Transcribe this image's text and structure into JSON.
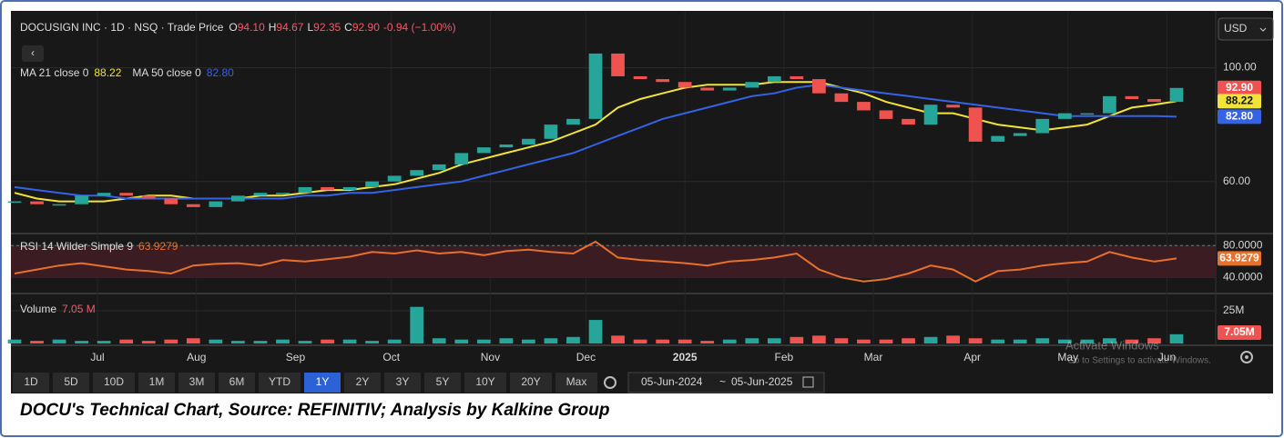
{
  "chart_data": [
    {
      "type": "candlestick",
      "title": "DOCUSIGN INC · 1D · NSQ · Trade Price",
      "ohlc": [
        {
          "key": "O",
          "value": "94.10"
        },
        {
          "key": "H",
          "value": "94.67"
        },
        {
          "key": "L",
          "value": "92.35"
        },
        {
          "key": "C",
          "value": "92.90"
        }
      ],
      "change": "-0.94 (−1.00%)",
      "xlim": [
        0,
        52
      ],
      "ylim": [
        42,
        120
      ],
      "yticks": [
        {
          "value": 60,
          "label": "60.00"
        },
        {
          "value": 100,
          "label": "100.00"
        }
      ],
      "color_up": "#26a69a",
      "color_down": "#ef5350",
      "close": [
        53,
        52,
        52,
        55,
        56,
        55,
        54,
        52,
        51,
        53,
        55,
        56,
        56,
        58,
        57,
        58,
        60,
        62,
        64,
        66,
        70,
        72,
        73,
        75,
        80,
        82,
        105,
        97,
        96,
        95,
        93,
        92,
        93,
        95,
        97,
        96,
        91,
        88,
        85,
        82,
        80,
        87,
        86,
        74,
        76,
        77,
        82,
        84,
        84,
        90,
        89,
        88,
        92.9
      ],
      "series": [
        {
          "name": "MA 21 close 0",
          "color": "#f2e33a",
          "value_label": "88.22",
          "values": [
            56,
            54,
            53,
            53,
            53,
            54,
            55,
            55,
            54,
            54,
            54,
            55,
            55,
            56,
            57,
            57,
            58,
            59,
            61,
            63,
            66,
            68,
            70,
            72,
            74,
            77,
            80,
            86,
            89,
            91,
            93,
            94,
            94,
            94,
            95,
            95,
            95,
            93,
            91,
            88,
            86,
            84,
            84,
            82,
            80,
            79,
            78,
            79,
            80,
            83,
            86,
            87,
            88.22
          ]
        },
        {
          "name": "MA 50 close 0",
          "color": "#3563e6",
          "value_label": "82.80",
          "values": [
            58,
            57,
            56,
            55,
            55,
            54,
            54,
            54,
            54,
            54,
            54,
            54,
            54,
            55,
            55,
            56,
            56,
            57,
            58,
            59,
            60,
            62,
            64,
            66,
            68,
            70,
            73,
            76,
            79,
            82,
            84,
            86,
            88,
            90,
            91,
            93,
            94,
            93,
            92,
            91,
            90,
            89,
            88,
            87,
            86,
            85,
            84,
            83,
            83,
            83,
            83,
            83,
            82.8
          ]
        }
      ]
    },
    {
      "type": "line",
      "xlim": [
        0,
        52
      ],
      "ylim": [
        21,
        94
      ],
      "yticks": [
        {
          "value": 40,
          "label": "40.0000"
        },
        {
          "value": 80,
          "label": "80.0000"
        }
      ],
      "series": [
        {
          "name": "RSI 14 Wilder Simple 9",
          "color": "#e8702a",
          "value_label": "63.9279",
          "values": [
            45,
            50,
            55,
            58,
            54,
            50,
            48,
            45,
            55,
            57,
            58,
            55,
            62,
            60,
            63,
            66,
            72,
            70,
            74,
            70,
            72,
            68,
            73,
            75,
            72,
            70,
            85,
            65,
            62,
            60,
            58,
            55,
            60,
            62,
            65,
            70,
            50,
            40,
            35,
            38,
            45,
            55,
            50,
            35,
            48,
            50,
            55,
            58,
            60,
            72,
            65,
            60,
            63.9279
          ]
        }
      ]
    },
    {
      "type": "bar",
      "xlim": [
        0,
        52
      ],
      "ylim": [
        0,
        37.5
      ],
      "yticks": [
        {
          "value": 25,
          "label": "25M"
        }
      ],
      "xticks": [
        {
          "value": 3.71,
          "label": "Jul"
        },
        {
          "value": 8.14,
          "label": "Aug"
        },
        {
          "value": 12.57,
          "label": "Sep"
        },
        {
          "value": 16.86,
          "label": "Oct"
        },
        {
          "value": 21.29,
          "label": "Nov"
        },
        {
          "value": 25.57,
          "label": "Dec"
        },
        {
          "value": 30,
          "label": "2025"
        },
        {
          "value": 34.43,
          "label": "Feb"
        },
        {
          "value": 38.43,
          "label": "Mar"
        },
        {
          "value": 42.86,
          "label": "Apr"
        },
        {
          "value": 47.14,
          "label": "May"
        },
        {
          "value": 51.57,
          "label": "Jun"
        }
      ],
      "series": [
        {
          "name": "Volume",
          "value_label": "7.05 M",
          "axis_label": "7.05M",
          "values": [
            3,
            2,
            3,
            2,
            2,
            3,
            2,
            3,
            4,
            3,
            2,
            2,
            3,
            2,
            3,
            3,
            2,
            3,
            28,
            4,
            3,
            3,
            4,
            3,
            4,
            5,
            18,
            6,
            3,
            3,
            3,
            2,
            3,
            4,
            4,
            5,
            6,
            4,
            3,
            3,
            4,
            5,
            6,
            4,
            3,
            3,
            4,
            3,
            3,
            4,
            3,
            4,
            7.05
          ]
        }
      ]
    }
  ],
  "toolbar": {
    "currency": "USD",
    "ranges": [
      "1D",
      "5D",
      "10D",
      "1M",
      "3M",
      "6M",
      "YTD",
      "1Y",
      "2Y",
      "3Y",
      "5Y",
      "10Y",
      "20Y",
      "Max"
    ],
    "active": "1Y",
    "date_from": "05-Jun-2024",
    "date_sep": "~",
    "date_to": "05-Jun-2025"
  },
  "watermark": [
    "Activate Windows",
    "Go to Settings to activate Windows."
  ],
  "caption": "DOCU's Technical Chart, Source: REFINITIV; Analysis by Kalkine Group"
}
